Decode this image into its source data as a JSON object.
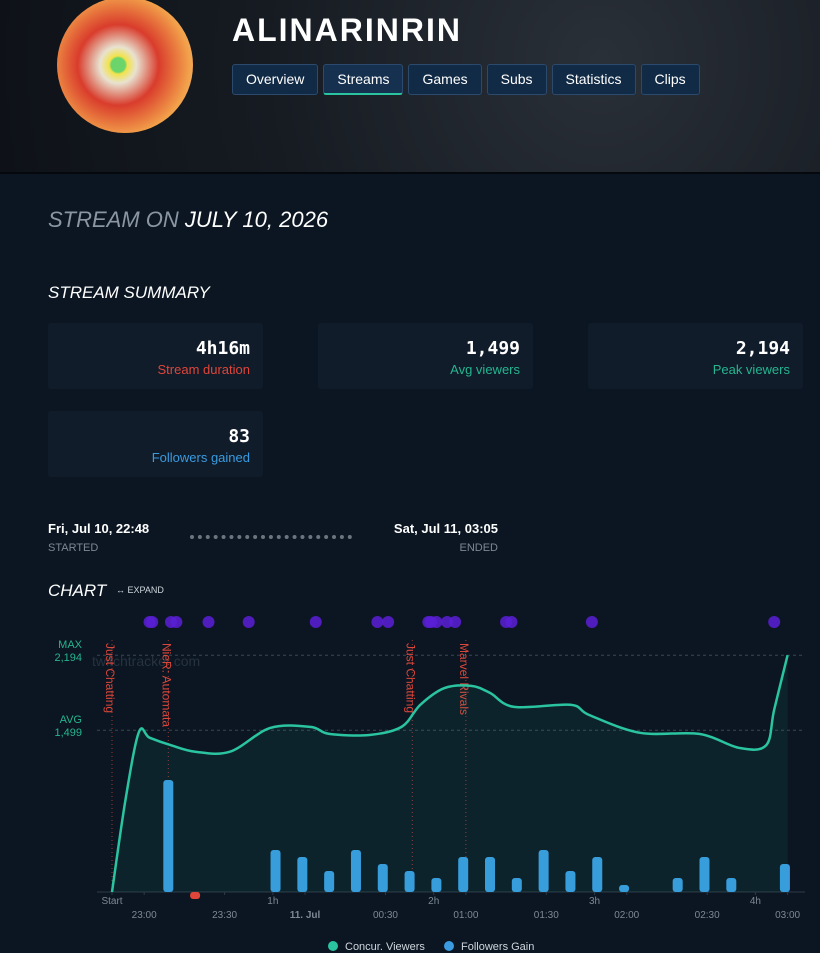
{
  "header": {
    "channel": "ALINARINRIN",
    "tabs": [
      "Overview",
      "Streams",
      "Games",
      "Subs",
      "Statistics",
      "Clips"
    ],
    "active_tab_index": 1
  },
  "stream_heading": {
    "prefix": "STREAM ON",
    "date": "JULY 10, 2026"
  },
  "summary": {
    "title": "STREAM SUMMARY",
    "cards": [
      {
        "value": "4h16m",
        "label": "Stream duration",
        "color": "#e0453a"
      },
      {
        "value": "1,499",
        "label": "Avg viewers",
        "color": "#26b590"
      },
      {
        "value": "2,194",
        "label": "Peak viewers",
        "color": "#26b590"
      },
      {
        "value": "83",
        "label": "Followers gained",
        "color": "#3a9be0"
      }
    ]
  },
  "timeline": {
    "start": "Fri, Jul 10, 22:48",
    "start_label": "STARTED",
    "end": "Sat, Jul 11, 03:05",
    "end_label": "ENDED"
  },
  "chart": {
    "title": "CHART",
    "expand": "EXPAND",
    "watermark": "twitchtracker.com",
    "type": "line",
    "xlim": [
      0,
      257
    ],
    "ylim": [
      0,
      2400
    ],
    "y2lim": [
      0,
      37
    ],
    "xticks": [
      {
        "value": 0,
        "label": "Start"
      },
      {
        "value": 60,
        "label": "1h"
      },
      {
        "value": 120,
        "label": "2h"
      },
      {
        "value": 180,
        "label": "3h"
      },
      {
        "value": 240,
        "label": "4h"
      }
    ],
    "xticks2": [
      {
        "value": 12,
        "label": "23:00"
      },
      {
        "value": 42,
        "label": "23:30"
      },
      {
        "value": 72,
        "label": "11. Jul"
      },
      {
        "value": 102,
        "label": "00:30"
      },
      {
        "value": 132,
        "label": "01:00"
      },
      {
        "value": 162,
        "label": "01:30"
      },
      {
        "value": 192,
        "label": "02:00"
      },
      {
        "value": 222,
        "label": "02:30"
      },
      {
        "value": 252,
        "label": "03:00"
      }
    ],
    "max_label": "MAX",
    "max": {
      "value": 2194,
      "label": "2,194"
    },
    "avg_label": "AVG",
    "avg": {
      "value": 1499,
      "label": "1,499"
    },
    "viewers": {
      "name": "Concur. Viewers",
      "color": "#2bc4a0",
      "x": [
        0,
        5,
        10,
        14,
        22,
        31,
        44,
        59,
        74,
        81,
        96,
        108,
        115,
        124,
        134,
        141,
        150,
        171,
        178,
        197,
        219,
        234,
        244,
        247,
        252
      ],
      "values": [
        0,
        850,
        1480,
        1430,
        1360,
        1300,
        1300,
        1520,
        1530,
        1465,
        1455,
        1530,
        1735,
        1890,
        1910,
        1845,
        1715,
        1735,
        1640,
        1475,
        1465,
        1335,
        1360,
        1690,
        2194
      ]
    },
    "followers": {
      "name": "Followers Gain",
      "color": "#3a9be0",
      "negative_color": "#e0453a",
      "axis": "y2",
      "x": [
        21,
        31,
        61,
        71,
        81,
        91,
        101,
        111,
        121,
        131,
        141,
        151,
        161,
        171,
        181,
        191,
        211,
        221,
        231,
        251
      ],
      "values": [
        16,
        -1,
        6,
        5,
        3,
        6,
        4,
        3,
        2,
        5,
        5,
        2,
        6,
        3,
        5,
        1,
        2,
        5,
        2,
        4
      ]
    },
    "games": [
      {
        "x": 0,
        "label": "Just Chatting"
      },
      {
        "x": 21,
        "label": "NieR: Automata"
      },
      {
        "x": 112,
        "label": "Just Chatting"
      },
      {
        "x": 132,
        "label": "Marvel Rivals"
      }
    ],
    "game_color": "#d9463a",
    "events": {
      "color": "#5a1fd6",
      "x": [
        14,
        15,
        22,
        24,
        36,
        51,
        76,
        99,
        103,
        118,
        119,
        121,
        125,
        128,
        147,
        149,
        179,
        247
      ]
    }
  }
}
